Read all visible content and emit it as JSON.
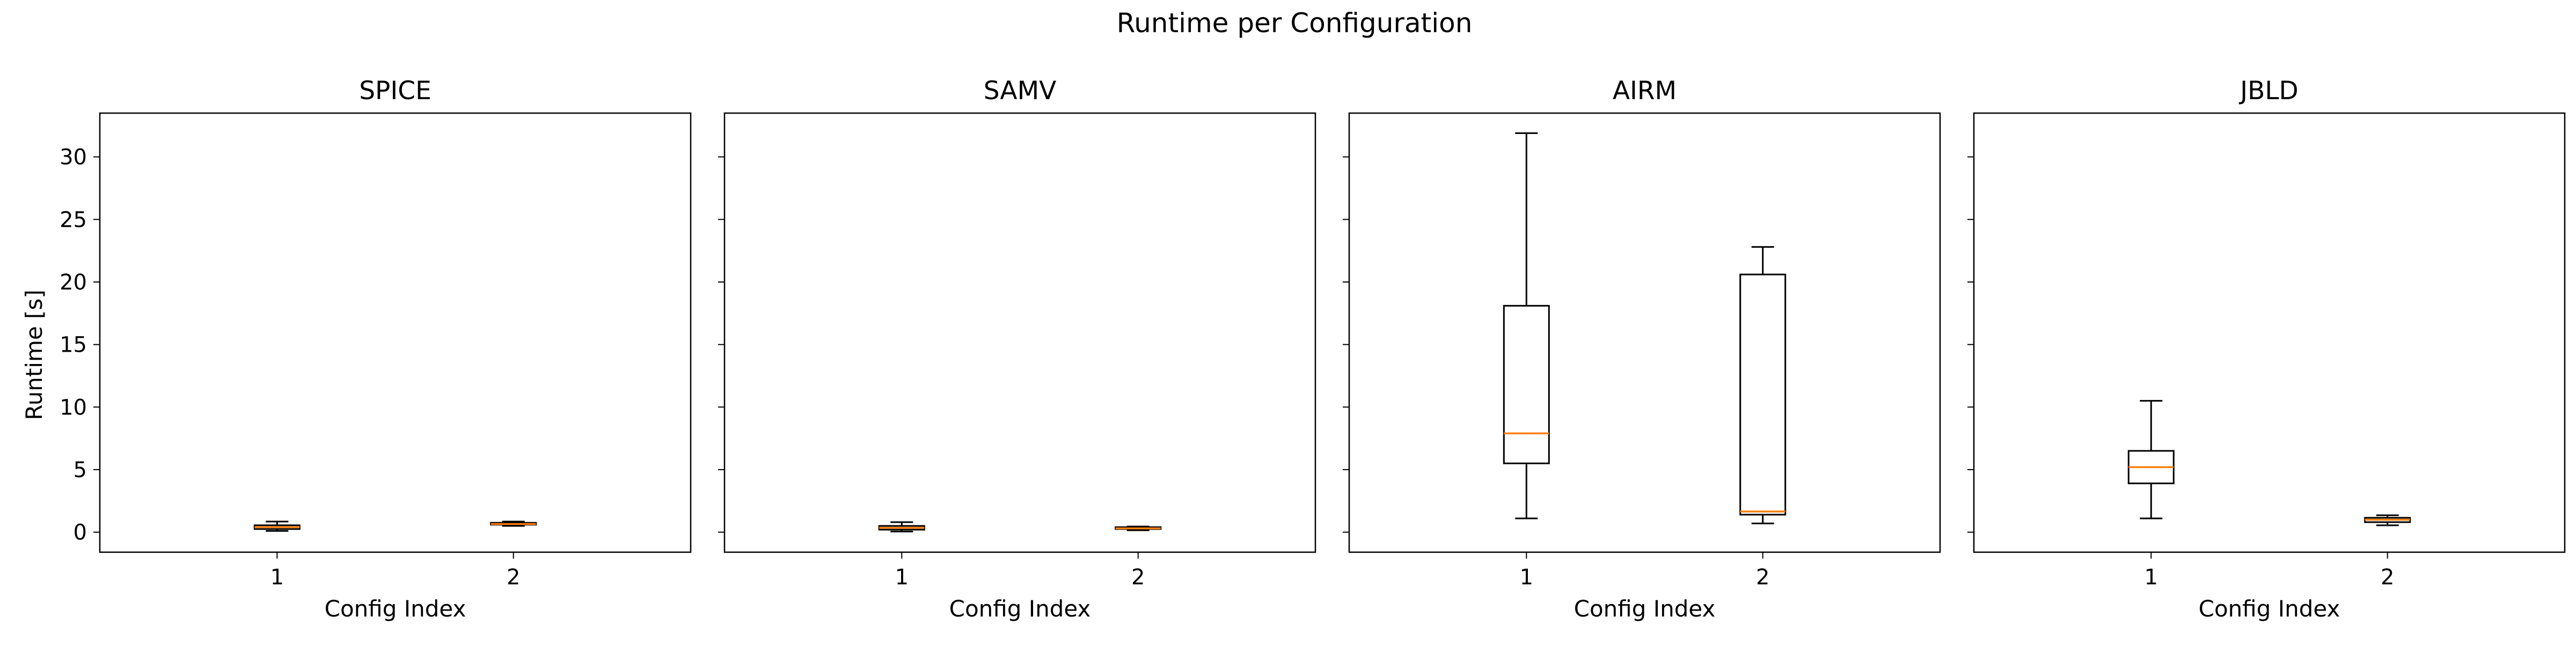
{
  "figure": {
    "title": "Runtime per Configuration",
    "ylabel": "Runtime [s]",
    "xlabel": "Config Index"
  },
  "colors": {
    "median": "#ff7f0e",
    "box": "#000000",
    "background": "#ffffff"
  },
  "chart_data": [
    {
      "type": "box",
      "title": "SPICE",
      "xlabel": "Config Index",
      "ylabel": "Runtime [s]",
      "categories": [
        "1",
        "2"
      ],
      "boxes": [
        {
          "min": 0.1,
          "q1": 0.25,
          "median": 0.4,
          "q3": 0.55,
          "max": 0.85
        },
        {
          "min": 0.5,
          "q1": 0.6,
          "median": 0.65,
          "q3": 0.75,
          "max": 0.85
        }
      ],
      "ylim": [
        -1.6,
        33.5
      ],
      "yticks": [
        0,
        5,
        10,
        15,
        20,
        25,
        30
      ],
      "grid": false,
      "sharey": true
    },
    {
      "type": "box",
      "title": "SAMV",
      "xlabel": "Config Index",
      "categories": [
        "1",
        "2"
      ],
      "boxes": [
        {
          "min": 0.05,
          "q1": 0.2,
          "median": 0.35,
          "q3": 0.5,
          "max": 0.8
        },
        {
          "min": 0.15,
          "q1": 0.25,
          "median": 0.3,
          "q3": 0.4,
          "max": 0.45
        }
      ],
      "ylim": [
        -1.6,
        33.5
      ],
      "yticks": [
        0,
        5,
        10,
        15,
        20,
        25,
        30
      ],
      "grid": false,
      "sharey": true
    },
    {
      "type": "box",
      "title": "AIRM",
      "xlabel": "Config Index",
      "categories": [
        "1",
        "2"
      ],
      "boxes": [
        {
          "min": 1.1,
          "q1": 5.5,
          "median": 7.9,
          "q3": 18.1,
          "max": 31.9
        },
        {
          "min": 0.7,
          "q1": 1.4,
          "median": 1.65,
          "q3": 20.6,
          "max": 22.8
        }
      ],
      "ylim": [
        -1.6,
        33.5
      ],
      "yticks": [
        0,
        5,
        10,
        15,
        20,
        25,
        30
      ],
      "grid": false,
      "sharey": true
    },
    {
      "type": "box",
      "title": "JBLD",
      "xlabel": "Config Index",
      "categories": [
        "1",
        "2"
      ],
      "boxes": [
        {
          "min": 1.1,
          "q1": 3.9,
          "median": 5.2,
          "q3": 6.5,
          "max": 10.5
        },
        {
          "min": 0.55,
          "q1": 0.8,
          "median": 1.0,
          "q3": 1.15,
          "max": 1.35
        }
      ],
      "ylim": [
        -1.6,
        33.5
      ],
      "yticks": [
        0,
        5,
        10,
        15,
        20,
        25,
        30
      ],
      "grid": false,
      "sharey": true
    }
  ]
}
